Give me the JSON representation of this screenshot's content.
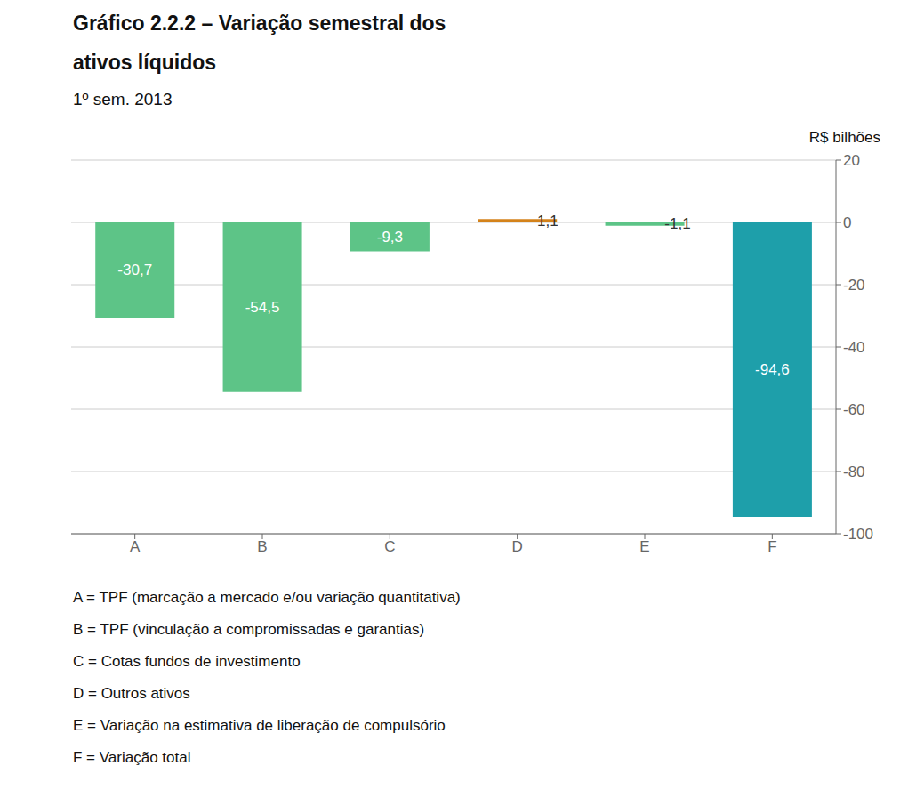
{
  "chart_data": {
    "type": "bar",
    "title": "Gráfico 2.2.2 – Variação semestral dos\nativos líquidos",
    "subtitle": "1º sem. 2013",
    "ylabel": "R$ bilhões",
    "categories": [
      "A",
      "B",
      "C",
      "D",
      "E",
      "F"
    ],
    "values": [
      -30.7,
      -54.5,
      -9.3,
      1.1,
      -1.1,
      -94.6
    ],
    "value_labels": [
      "-30,7",
      "-54,5",
      "-9,3",
      "1,1",
      "-1,1",
      "-94,6"
    ],
    "colors": [
      "#5dc487",
      "#5dc487",
      "#5dc487",
      "#d4821a",
      "#5dc487",
      "#1e9faa"
    ],
    "ylim": [
      -100,
      20
    ],
    "yticks": [
      20,
      0,
      -20,
      -40,
      -60,
      -80,
      -100
    ],
    "grid": true,
    "data_labels": true,
    "annotations": [
      "A = TPF (marcação a mercado e/ou variação quantitativa)",
      "B = TPF (vinculação a compromissadas e garantias)",
      "C = Cotas fundos de investimento",
      "D = Outros ativos",
      "E = Variação na estimativa de liberação de compulsório",
      "F = Variação total"
    ]
  }
}
